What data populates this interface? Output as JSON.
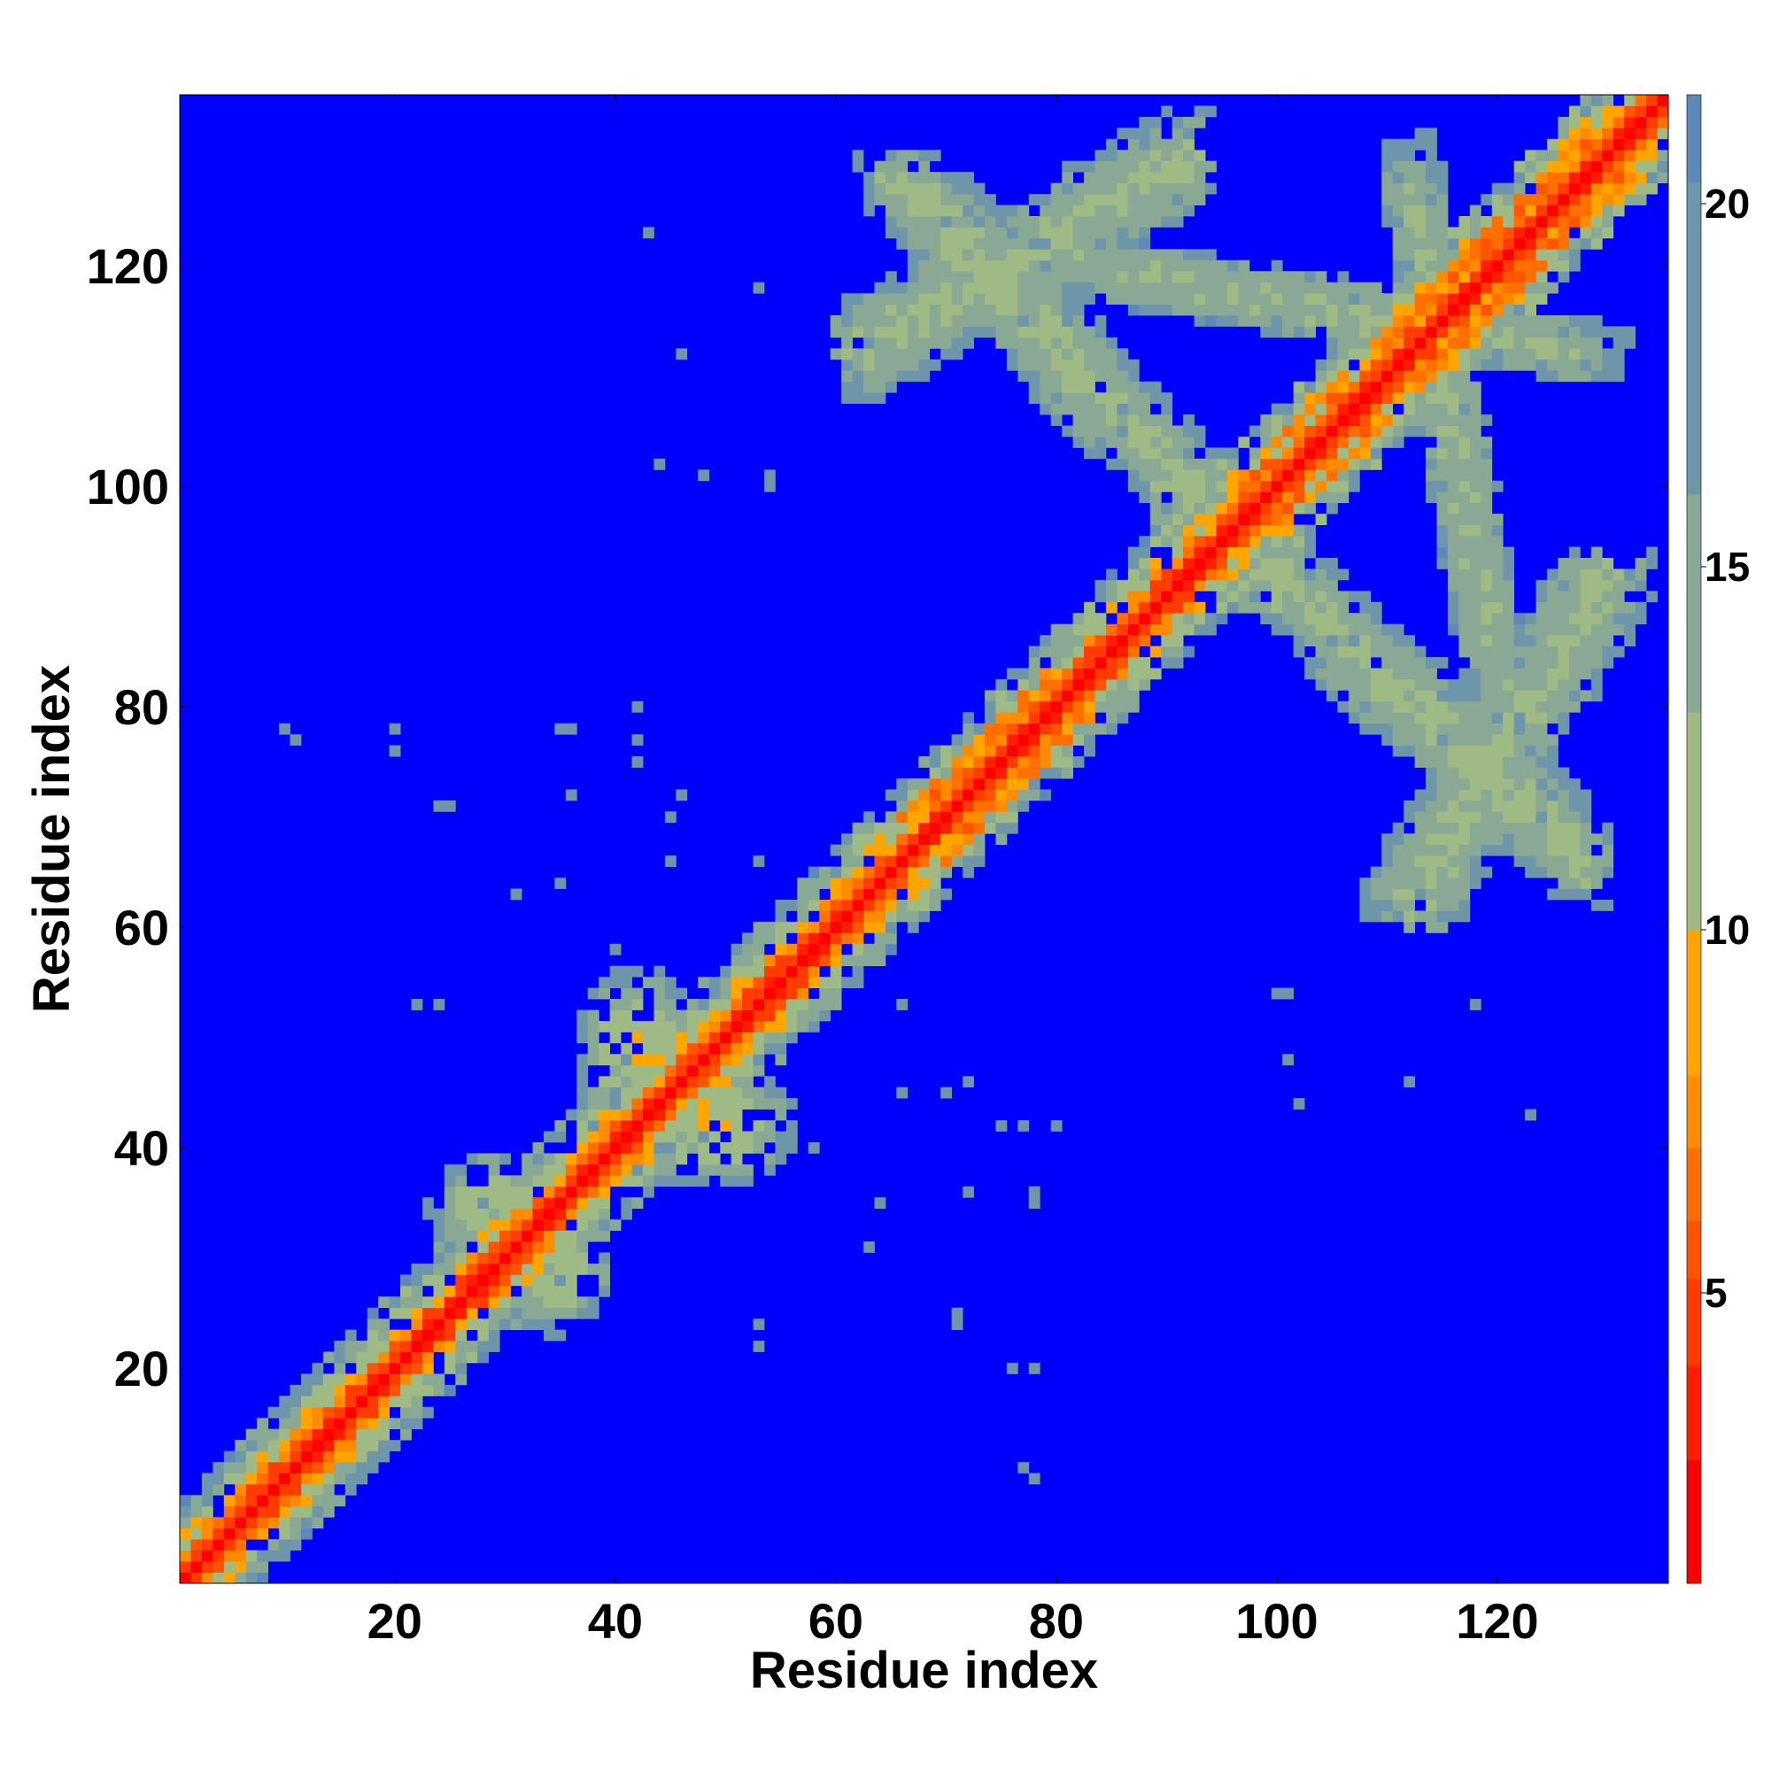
{
  "chart_data": {
    "type": "heatmap",
    "title": "",
    "xlabel": "Residue index",
    "ylabel": "Residue index",
    "xlim": [
      1,
      135
    ],
    "ylim": [
      1,
      135
    ],
    "x_ticks": [
      20,
      40,
      60,
      80,
      100,
      120
    ],
    "y_ticks": [
      20,
      40,
      60,
      80,
      100,
      120
    ],
    "residue_count": 135,
    "symmetric": true,
    "grid": false,
    "colorbar": {
      "position": "right",
      "range": [
        1,
        21.5
      ],
      "ticks": [
        5,
        10,
        15,
        20
      ],
      "colors": [
        "#ff0000",
        "#ff1e00",
        "#ff3c00",
        "#ff5500",
        "#ff7000",
        "#ff8c00",
        "#ffa500",
        "#9fba84",
        "#8aa994",
        "#6e96ab",
        "#5d89ba",
        "#0000ff"
      ],
      "bounds": [
        1,
        2.7,
        4,
        5.2,
        6,
        7,
        8,
        10,
        13,
        16,
        20.3,
        21.5
      ]
    },
    "features": [
      {
        "name": "backbone diagonal",
        "i_range": [
          1,
          135
        ],
        "offset": 0,
        "value": 1.5
      },
      {
        "name": "near-diagonal band",
        "i_range": [
          1,
          135
        ],
        "offset_range": [
          1,
          4
        ],
        "value_range": [
          3,
          14
        ]
      },
      {
        "name": "helix contacts",
        "i_range": [
          65,
          80
        ],
        "offset": 4,
        "value": 6.5
      },
      {
        "name": "helix contacts",
        "i_range": [
          97,
          130
        ],
        "offset": 4,
        "value": 6.5
      },
      {
        "name": "cluster",
        "center": [
          30,
          34
        ],
        "spread": [
          5,
          4
        ],
        "value_range": [
          9,
          17
        ]
      },
      {
        "name": "cluster",
        "center": [
          42,
          48
        ],
        "spread": [
          4,
          6
        ],
        "value_range": [
          9,
          17
        ]
      },
      {
        "name": "anti-diagonal cross",
        "from": [
          82,
          120
        ],
        "to": [
          128,
          112
        ],
        "value_range": [
          11,
          18
        ]
      },
      {
        "name": "anti-diagonal lobe",
        "from": [
          66,
          128
        ],
        "to": [
          96,
          95
        ],
        "value_range": [
          10,
          18
        ]
      },
      {
        "name": "anti-diagonal lobe",
        "from": [
          112,
          62
        ],
        "to": [
          130,
          92
        ],
        "value_range": [
          10,
          18
        ]
      }
    ],
    "outliers": [
      [
        10,
        78
      ],
      [
        20,
        78
      ],
      [
        25,
        71
      ],
      [
        35,
        78
      ],
      [
        42,
        80
      ],
      [
        45,
        70
      ],
      [
        40,
        58
      ],
      [
        22,
        53
      ],
      [
        53,
        66
      ],
      [
        55,
        57
      ],
      [
        45,
        66
      ],
      [
        54,
        101
      ],
      [
        48,
        101
      ],
      [
        72,
        46
      ],
      [
        77,
        42
      ],
      [
        75,
        42
      ],
      [
        72,
        36
      ],
      [
        78,
        36
      ],
      [
        76,
        20
      ],
      [
        77,
        11
      ],
      [
        53,
        24
      ],
      [
        71,
        24
      ],
      [
        63,
        31
      ],
      [
        102,
        44
      ],
      [
        112,
        46
      ],
      [
        123,
        43
      ],
      [
        118,
        53
      ],
      [
        100,
        54
      ],
      [
        35,
        64
      ]
    ]
  }
}
